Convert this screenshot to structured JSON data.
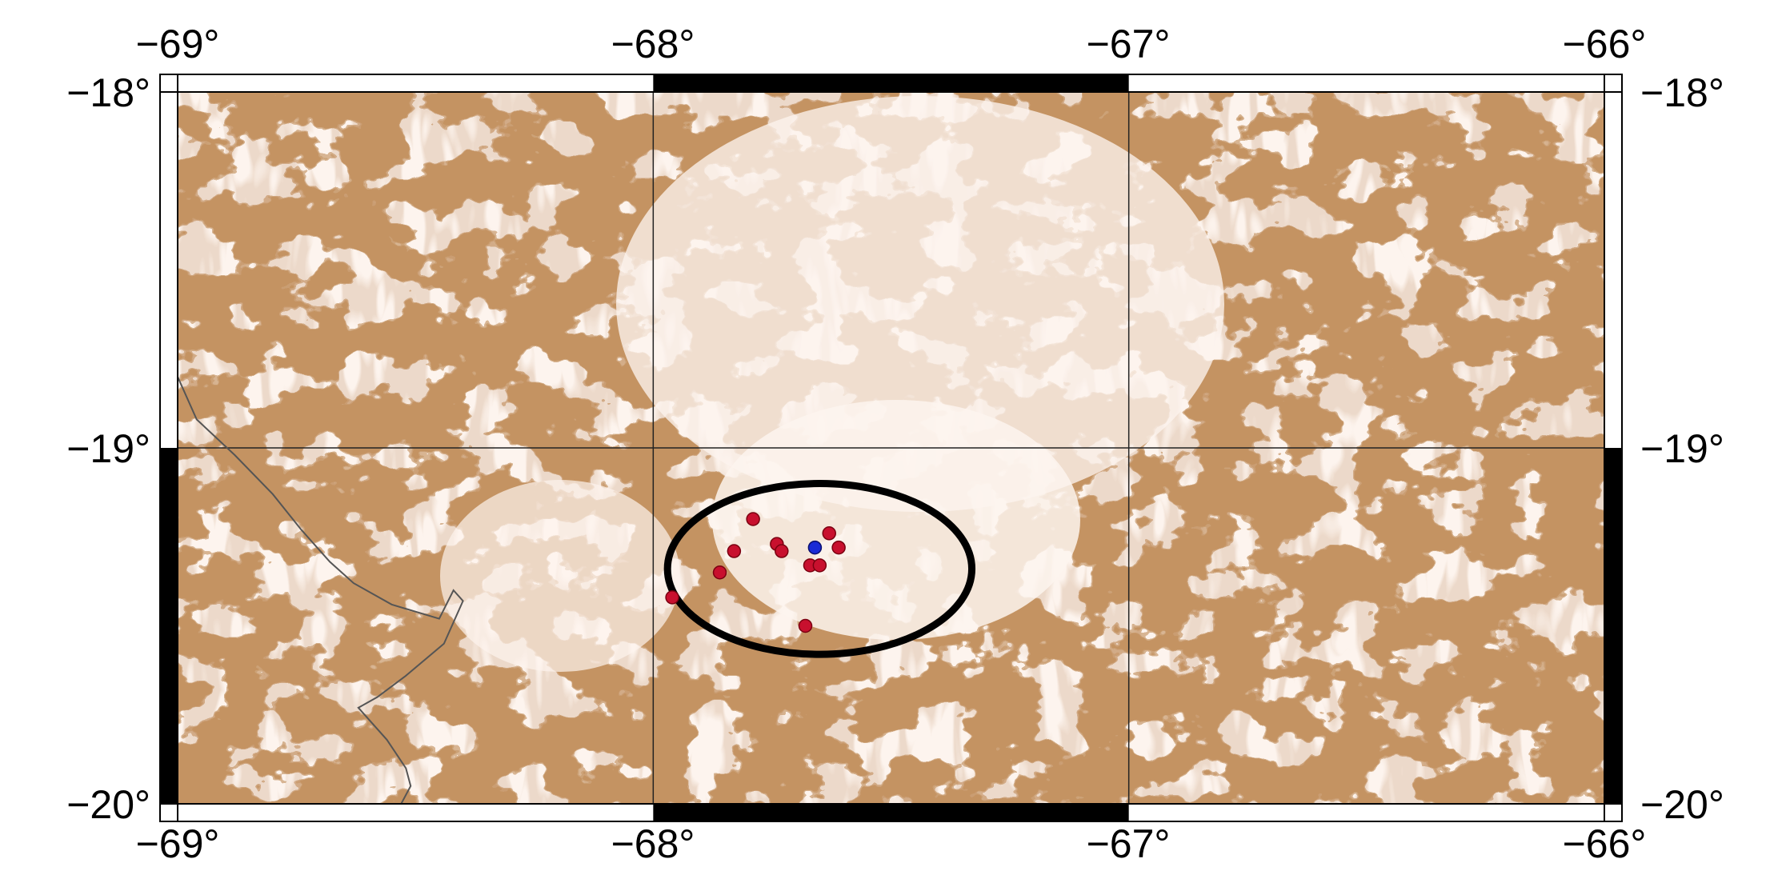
{
  "map": {
    "lon_range": [
      -69,
      -66
    ],
    "lat_range": [
      -20,
      -18
    ],
    "top_tick_labels": [
      "−69°",
      "−68°",
      "−67°",
      "−66°"
    ],
    "bottom_tick_labels": [
      "−69°",
      "−68°",
      "−67°",
      "−66°"
    ],
    "left_tick_labels": [
      "−18°",
      "−19°",
      "−20°"
    ],
    "right_tick_labels": [
      "−18°",
      "−19°",
      "−20°"
    ],
    "gridlines": true,
    "terrain_color": "#8c4a1f",
    "background_color": "#fdf4ee",
    "event_color": "#c8102e",
    "main_event_color": "#1a2bd6",
    "events": [
      {
        "lon": -67.79,
        "lat": -19.2
      },
      {
        "lon": -67.74,
        "lat": -19.27
      },
      {
        "lon": -67.73,
        "lat": -19.29
      },
      {
        "lon": -67.83,
        "lat": -19.29
      },
      {
        "lon": -67.63,
        "lat": -19.24
      },
      {
        "lon": -67.61,
        "lat": -19.28
      },
      {
        "lon": -67.67,
        "lat": -19.33
      },
      {
        "lon": -67.65,
        "lat": -19.33
      },
      {
        "lon": -67.86,
        "lat": -19.35
      },
      {
        "lon": -67.96,
        "lat": -19.42
      },
      {
        "lon": -67.68,
        "lat": -19.5
      }
    ],
    "main_event": {
      "lon": -67.66,
      "lat": -19.28
    },
    "highlight_circle": {
      "center_lon": -67.65,
      "center_lat": -19.34,
      "radius_lon": 0.32,
      "radius_lat": 0.24
    },
    "border_line": [
      [
        -69.0,
        -18.8
      ],
      [
        -68.96,
        -18.92
      ],
      [
        -68.88,
        -19.02
      ],
      [
        -68.8,
        -19.13
      ],
      [
        -68.74,
        -19.23
      ],
      [
        -68.68,
        -19.32
      ],
      [
        -68.63,
        -19.38
      ],
      [
        -68.55,
        -19.44
      ],
      [
        -68.45,
        -19.48
      ],
      [
        -68.42,
        -19.4
      ],
      [
        -68.4,
        -19.43
      ],
      [
        -68.44,
        -19.55
      ],
      [
        -68.52,
        -19.64
      ],
      [
        -68.58,
        -19.7
      ],
      [
        -68.62,
        -19.73
      ],
      [
        -68.56,
        -19.82
      ],
      [
        -68.52,
        -19.9
      ],
      [
        -68.51,
        -19.95
      ],
      [
        -68.53,
        -20.0
      ]
    ]
  }
}
